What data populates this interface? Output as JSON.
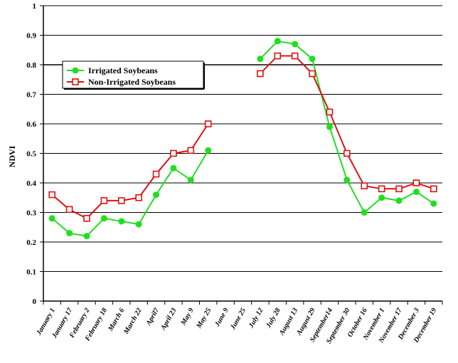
{
  "chart_data": {
    "type": "line",
    "title": "",
    "xlabel": "",
    "ylabel": "NDVI",
    "ylim": [
      0,
      1
    ],
    "yticks": [
      "0",
      "0.1",
      "0.2",
      "0.3",
      "0.4",
      "0.5",
      "0.6",
      "0.7",
      "0.8",
      "0.9",
      "1"
    ],
    "grid": "horizontal",
    "legend_position": "upper-left",
    "categories": [
      "January 1",
      "January 17",
      "February 2",
      "February 18",
      "March 6",
      "March 22",
      "April7",
      "April 23",
      "May 9",
      "May 25",
      "June 9",
      "June 25",
      "July 12",
      "July 28",
      "August 13",
      "August 29",
      "September14",
      "September 30",
      "October 16",
      "November 1",
      "November 17",
      "December 3",
      "December 19"
    ],
    "series": [
      {
        "name": "Irrigated Soybeans",
        "color": "#22dd22",
        "marker": "circle",
        "values": [
          0.28,
          0.23,
          0.22,
          0.28,
          0.27,
          0.26,
          0.36,
          0.45,
          0.41,
          0.51,
          null,
          null,
          0.82,
          0.88,
          0.87,
          0.82,
          0.59,
          0.41,
          0.3,
          0.35,
          0.34,
          0.37,
          0.33
        ]
      },
      {
        "name": "Non-Irrigated Soybeans",
        "color": "#dd1111",
        "marker": "square",
        "values": [
          0.36,
          0.31,
          0.28,
          0.34,
          0.34,
          0.35,
          0.43,
          0.5,
          0.51,
          0.6,
          null,
          null,
          0.77,
          0.83,
          0.83,
          0.77,
          0.64,
          0.5,
          0.39,
          0.38,
          0.38,
          0.4,
          0.38
        ]
      }
    ]
  }
}
